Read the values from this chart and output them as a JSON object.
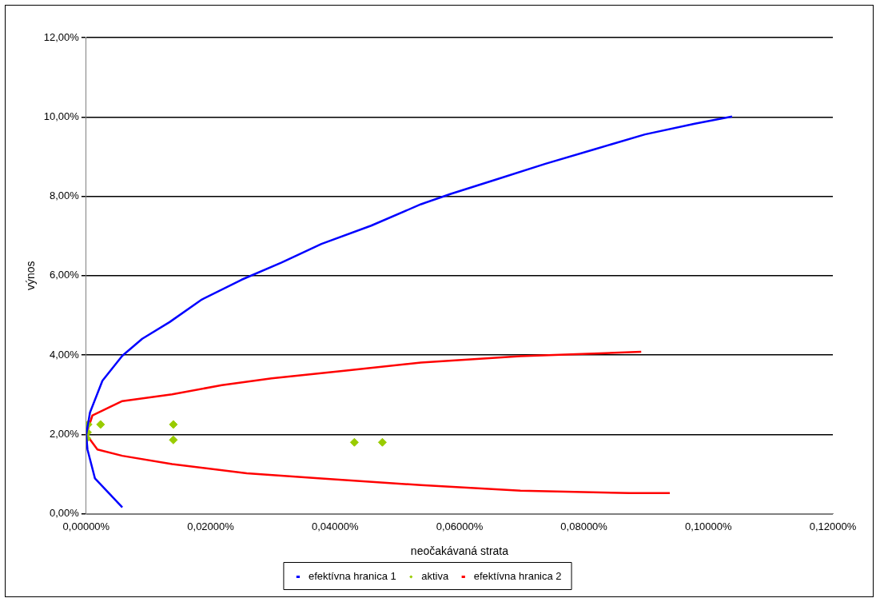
{
  "chart_data": {
    "type": "line",
    "xlabel": "neočakávaná strata",
    "ylabel": "výnos",
    "xlim": [
      0,
      0.12
    ],
    "xticks": [
      {
        "value": 0,
        "label": "0,00000%"
      },
      {
        "value": 0.02,
        "label": "0,02000%"
      },
      {
        "value": 0.04,
        "label": "0,04000%"
      },
      {
        "value": 0.06,
        "label": "0,06000%"
      },
      {
        "value": 0.08,
        "label": "0,08000%"
      },
      {
        "value": 0.1,
        "label": "0,10000%"
      },
      {
        "value": 0.12,
        "label": "0,12000%"
      }
    ],
    "ylim": [
      0,
      12
    ],
    "yticks": [
      {
        "value": 0,
        "label": "0,00%"
      },
      {
        "value": 2,
        "label": "2,00%"
      },
      {
        "value": 4,
        "label": "4,00%"
      },
      {
        "value": 6,
        "label": "6,00%"
      },
      {
        "value": 8,
        "label": "8,00%"
      },
      {
        "value": 10,
        "label": "10,00%"
      },
      {
        "value": 12,
        "label": "12,00%"
      }
    ],
    "grid": "y",
    "legend": "bottom",
    "line_style": "solid",
    "series": [
      {
        "name": "efektívna hranica 1",
        "color": "#0000ff",
        "marker": "none",
        "x": [
          0.0058,
          0.0014,
          0.0002,
          0,
          0.0006,
          0.0026,
          0.0058,
          0.009,
          0.0134,
          0.0186,
          0.025,
          0.0314,
          0.0378,
          0.0458,
          0.0538,
          0.0586,
          0.0658,
          0.0738,
          0.0818,
          0.0898,
          0.0978,
          0.1038
        ],
        "values": [
          0.16,
          0.89,
          1.62,
          1.99,
          2.55,
          3.35,
          3.98,
          4.41,
          4.83,
          5.4,
          5.9,
          6.33,
          6.8,
          7.26,
          7.8,
          8.06,
          8.42,
          8.82,
          9.19,
          9.56,
          9.83,
          10.01
        ]
      },
      {
        "name": "aktiva",
        "type": "scatter",
        "color": "#99cc00",
        "marker": "diamond",
        "x": [
          0.0003,
          0.0023,
          0.0001,
          0.0002,
          0.014,
          0.014,
          0.0431,
          0.0476
        ],
        "values": [
          2.25,
          2.25,
          1.9,
          2.05,
          2.25,
          1.86,
          1.8,
          1.8
        ]
      },
      {
        "name": "efektívna hranica 2",
        "color": "#ff0000",
        "marker": "none",
        "x": [
          0.0938,
          0.0874,
          0.0698,
          0.0538,
          0.0378,
          0.0258,
          0.0138,
          0.0058,
          0.0018,
          0,
          0.001,
          0.0058,
          0.0138,
          0.0218,
          0.0298,
          0.0418,
          0.0538,
          0.0698,
          0.0892
        ],
        "values": [
          0.52,
          0.52,
          0.58,
          0.72,
          0.89,
          1.02,
          1.25,
          1.46,
          1.62,
          2.0,
          2.48,
          2.84,
          3.01,
          3.24,
          3.41,
          3.61,
          3.81,
          3.97,
          4.08
        ]
      }
    ]
  }
}
